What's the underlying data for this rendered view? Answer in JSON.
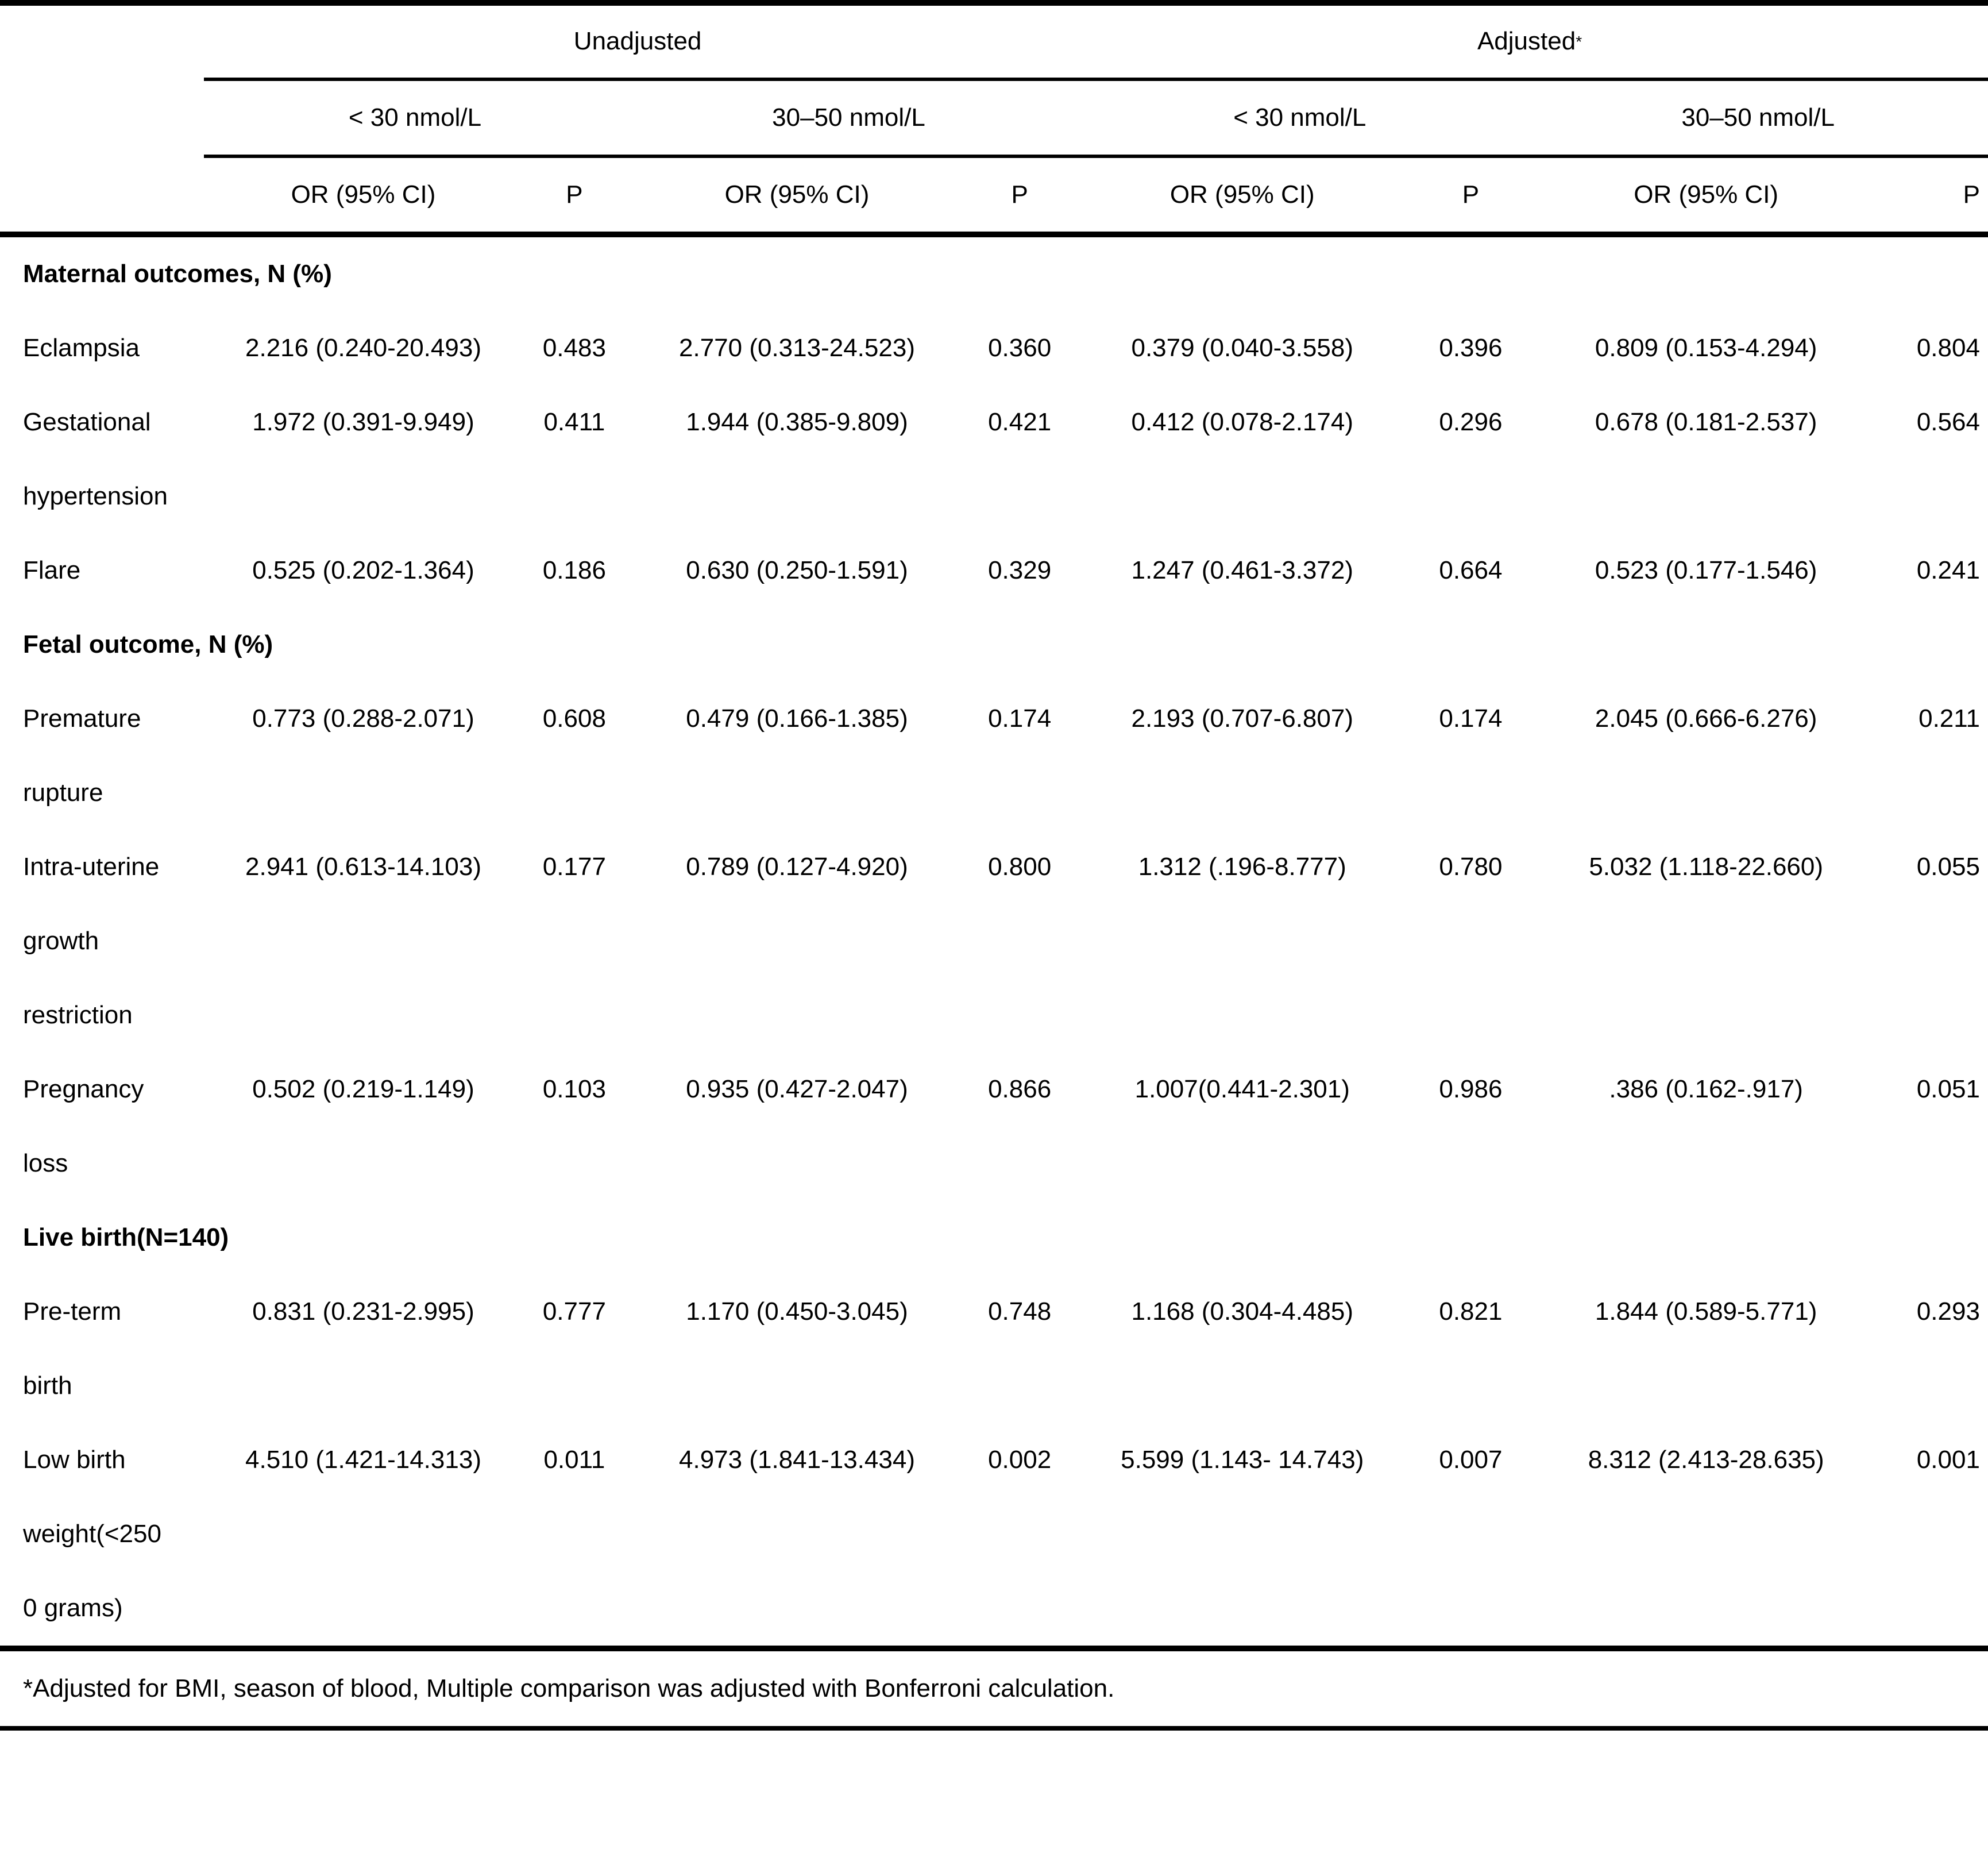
{
  "table": {
    "groups": {
      "unadjusted": "Unadjusted",
      "adjusted": "Adjusted",
      "adjusted_sup": "*"
    },
    "subheaders": [
      "< 30 nmol/L",
      "30–50 nmol/L",
      "< 30 nmol/L",
      "30–50 nmol/L"
    ],
    "col_headers": [
      "OR (95% CI)",
      "P",
      "OR (95% CI)",
      "P",
      "OR (95% CI)",
      "P",
      "OR (95% CI)",
      "P"
    ],
    "sections": [
      {
        "title": "Maternal outcomes, N (%)",
        "rows": [
          {
            "label_lines": [
              "Eclampsia"
            ],
            "values": [
              "2.216 (0.240-20.493)",
              "0.483",
              "2.770 (0.313-24.523)",
              "0.360",
              "0.379 (0.040-3.558)",
              "0.396",
              "0.809 (0.153-4.294)",
              "0.804"
            ]
          },
          {
            "label_lines": [
              "Gestational",
              "hypertension"
            ],
            "values": [
              "1.972 (0.391-9.949)",
              "0.411",
              "1.944 (0.385-9.809)",
              "0.421",
              "0.412 (0.078-2.174)",
              "0.296",
              "0.678 (0.181-2.537)",
              "0.564"
            ]
          },
          {
            "label_lines": [
              "Flare"
            ],
            "values": [
              "0.525 (0.202-1.364)",
              "0.186",
              "0.630 (0.250-1.591)",
              "0.329",
              "1.247 (0.461-3.372)",
              "0.664",
              "0.523 (0.177-1.546)",
              "0.241"
            ]
          }
        ]
      },
      {
        "title": "Fetal outcome, N (%)",
        "rows": [
          {
            "label_lines": [
              "Premature",
              "rupture"
            ],
            "values": [
              "0.773 (0.288-2.071)",
              "0.608",
              "0.479 (0.166-1.385)",
              "0.174",
              "2.193 (0.707-6.807)",
              "0.174",
              "2.045 (0.666-6.276)",
              "0.211"
            ]
          },
          {
            "label_lines": [
              "Intra-uterine",
              "growth",
              "restriction"
            ],
            "values": [
              "2.941 (0.613-14.103)",
              "0.177",
              "0.789 (0.127-4.920)",
              "0.800",
              "1.312 (.196-8.777)",
              "0.780",
              "5.032 (1.118-22.660)",
              "0.055"
            ]
          },
          {
            "label_lines": [
              "Pregnancy",
              "loss"
            ],
            "values": [
              "0.502 (0.219-1.149)",
              "0.103",
              "0.935 (0.427-2.047)",
              "0.866",
              "1.007(0.441-2.301)",
              "0.986",
              ".386 (0.162-.917)",
              "0.051"
            ]
          }
        ]
      },
      {
        "title": "Live birth(N=140)",
        "rows": [
          {
            "label_lines": [
              "Pre-term",
              "birth"
            ],
            "values": [
              "0.831 (0.231-2.995)",
              "0.777",
              "1.170 (0.450-3.045)",
              "0.748",
              "1.168 (0.304-4.485)",
              "0.821",
              "1.844 (0.589-5.771)",
              "0.293"
            ]
          },
          {
            "label_lines": [
              "Low birth",
              "weight(<250",
              "0 grams)"
            ],
            "values": [
              "4.510 (1.421-14.313)",
              "0.011",
              "4.973 (1.841-13.434)",
              "0.002",
              "5.599 (1.143- 14.743)",
              "0.007",
              "8.312 (2.413-28.635)",
              "0.001"
            ]
          }
        ]
      }
    ],
    "footnote": "*Adjusted for BMI, season of blood, Multiple comparison was adjusted with Bonferroni calculation."
  }
}
